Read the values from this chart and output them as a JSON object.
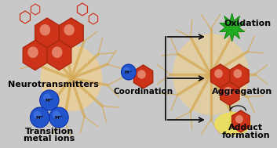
{
  "background_color": "#c8c8c8",
  "neuron_color": "#f0d090",
  "neuron_branch_color": "#d4aa55",
  "hex_color_dark": "#cc3318",
  "hex_edge_color": "#aa2810",
  "hex_highlight": "#f09070",
  "blue_circle_color": "#2255cc",
  "blue_circle_edge": "#1133aa",
  "blue_highlight": "#5588ee",
  "green_star_color": "#22aa22",
  "green_star_edge": "#118811",
  "yellow_blob_color": "#f0e050",
  "arrow_color": "#111111",
  "text_neurotransmitters": "Neurotransmitters",
  "text_transition_1": "Transition",
  "text_transition_2": "metal ions",
  "text_coordination": "Coordination",
  "text_oxidation": "Oxidation",
  "text_aggregation": "Aggregation",
  "text_adduct_1": "Adduct",
  "text_adduct_2": "formation",
  "text_mion": "Mⁿ⁺",
  "fontsize_main": 7.5,
  "fontsize_label": 8.0
}
